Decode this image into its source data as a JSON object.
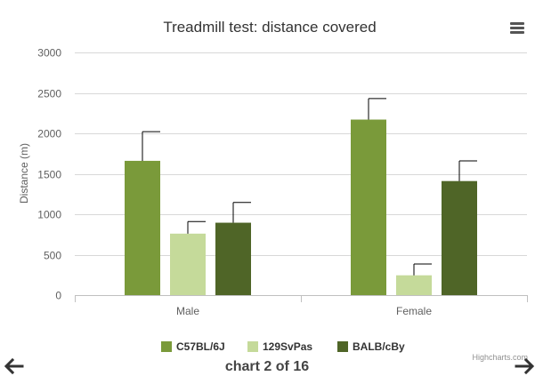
{
  "menu": {
    "icon": "hamburger-menu-icon"
  },
  "navigation": {
    "prev_icon": "arrow-left-icon",
    "next_icon": "arrow-right-icon",
    "counter": "chart 2 of 16"
  },
  "credits": "Highcharts.com",
  "chart_data": {
    "type": "bar",
    "title": "Treadmill test: distance covered",
    "xlabel": "",
    "ylabel": "Distance (m)",
    "categories": [
      "Male",
      "Female"
    ],
    "ylim": [
      0,
      3000
    ],
    "yticks": [
      0,
      500,
      1000,
      1500,
      2000,
      2500,
      3000
    ],
    "grid": true,
    "legend_position": "bottom-center",
    "error_bars": true,
    "series": [
      {
        "name": "C57BL/6J",
        "color": "#7a9a3a",
        "values": [
          1660,
          2170
        ],
        "errors": [
          360,
          260
        ]
      },
      {
        "name": "129SvPas",
        "color": "#c5da9a",
        "values": [
          760,
          245
        ],
        "errors": [
          150,
          140
        ]
      },
      {
        "name": "BALB/cBy",
        "color": "#4f6527",
        "values": [
          895,
          1410
        ],
        "errors": [
          250,
          250
        ]
      }
    ]
  }
}
